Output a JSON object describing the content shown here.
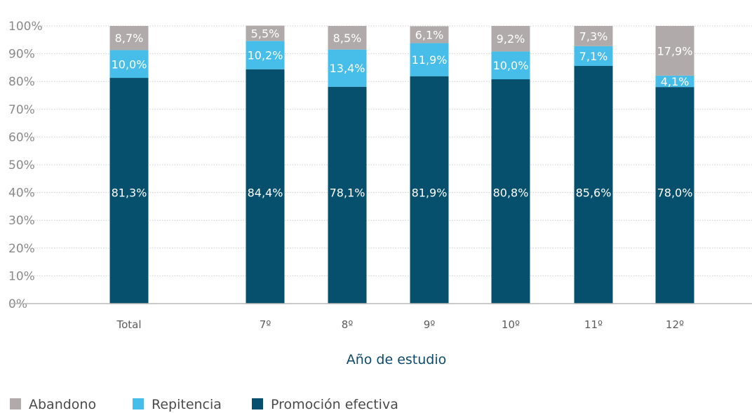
{
  "chart_data": {
    "type": "bar",
    "stacked": true,
    "categories": [
      "Total",
      "7º",
      "8º",
      "9º",
      "10º",
      "11º",
      "12º"
    ],
    "series": [
      {
        "name": "Promoción efectiva",
        "color": "#07506d",
        "values": [
          81.3,
          84.4,
          78.1,
          81.9,
          80.8,
          85.6,
          78.0
        ],
        "labels": [
          "81,3%",
          "84,4%",
          "78,1%",
          "81,9%",
          "80,8%",
          "85,6%",
          "78,0%"
        ]
      },
      {
        "name": "Repitencia",
        "color": "#47bde9",
        "values": [
          10.0,
          10.2,
          13.4,
          11.9,
          10.0,
          7.1,
          4.1
        ],
        "labels": [
          "10,0%",
          "10,2%",
          "13,4%",
          "11,9%",
          "10,0%",
          "7,1%",
          "4,1%"
        ]
      },
      {
        "name": "Abandono",
        "color": "#b0abaa",
        "values": [
          8.7,
          5.5,
          8.5,
          6.1,
          9.2,
          7.3,
          17.9
        ],
        "labels": [
          "8,7%",
          "5,5%",
          "8,5%",
          "6,1%",
          "9,2%",
          "7,3%",
          "17,9%"
        ]
      }
    ],
    "y_ticks": [
      "0%",
      "10%",
      "20%",
      "30%",
      "40%",
      "50%",
      "60%",
      "70%",
      "80%",
      "90%",
      "100%"
    ],
    "ylim": [
      0,
      100
    ],
    "xlabel": "Año de estudio",
    "ylabel": "",
    "grid": true,
    "legend_position": "bottom-left",
    "legend_order": [
      "Abandono",
      "Repitencia",
      "Promoción efectiva"
    ]
  }
}
